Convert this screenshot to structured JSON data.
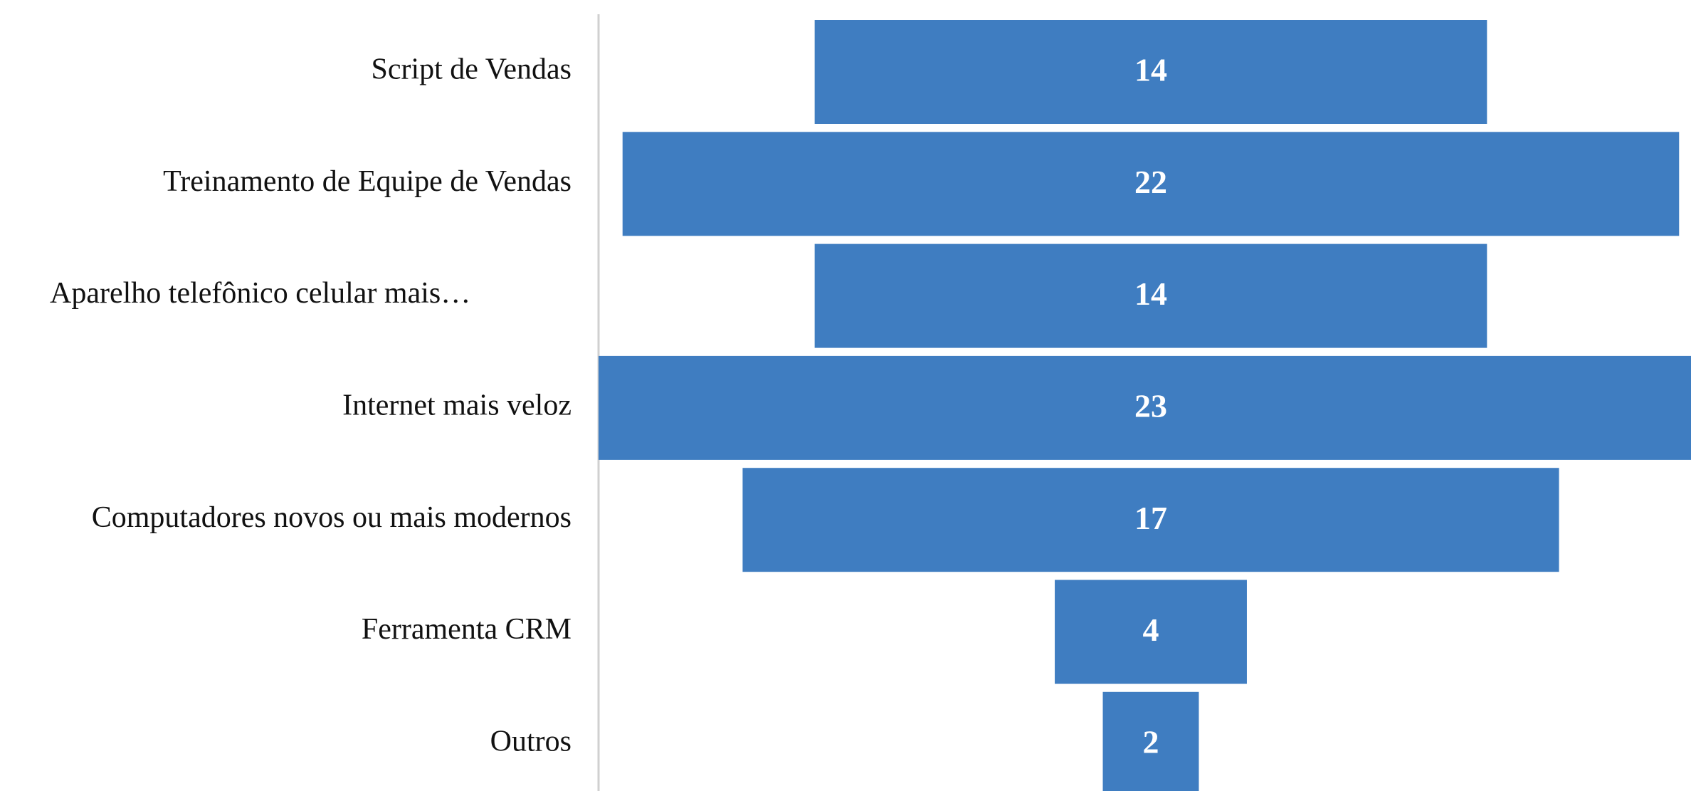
{
  "chart_data": {
    "type": "funnel",
    "categories": [
      "Script de Vendas",
      "Treinamento de Equipe de Vendas",
      "Aparelho telefônico celular mais…",
      "Internet mais veloz",
      "Computadores novos ou mais modernos",
      "Ferramenta CRM",
      "Outros"
    ],
    "values": [
      14,
      22,
      14,
      23,
      17,
      4,
      2
    ],
    "color": "#3f7dc1"
  }
}
